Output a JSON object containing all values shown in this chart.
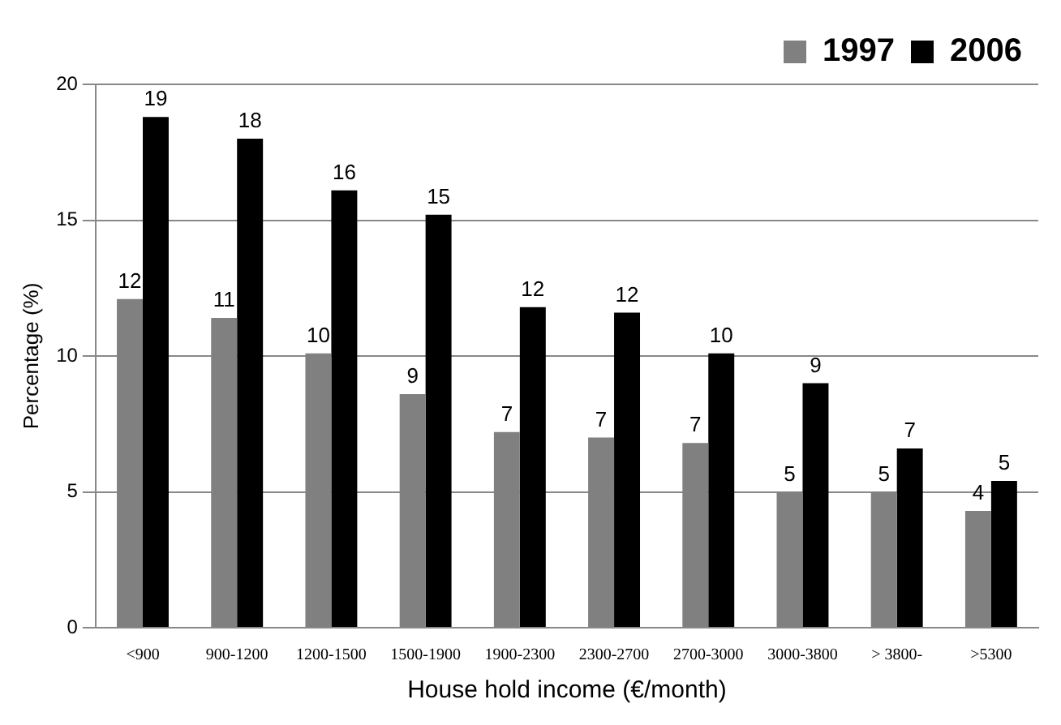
{
  "chart_data": {
    "type": "bar",
    "xlabel": "House hold income (€/month)",
    "ylabel": "Percentage (%)",
    "categories": [
      "<900",
      "900-1200",
      "1200-1500",
      "1500-1900",
      "1900-2300",
      "2300-2700",
      "2700-3000",
      "3000-3800",
      "> 3800-",
      ">5300"
    ],
    "series": [
      {
        "name": "1997",
        "color": "#808080",
        "values": [
          12.1,
          11.4,
          10.1,
          8.6,
          7.2,
          7.0,
          6.8,
          5.0,
          5.0,
          4.3
        ],
        "value_labels": [
          "12",
          "11",
          "10",
          "9",
          "7",
          "7",
          "7",
          "5",
          "5",
          "4"
        ]
      },
      {
        "name": "2006",
        "color": "#000000",
        "values": [
          18.8,
          18.0,
          16.1,
          15.2,
          11.8,
          11.6,
          10.1,
          9.0,
          6.6,
          5.4
        ],
        "value_labels": [
          "19",
          "18",
          "16",
          "15",
          "12",
          "12",
          "10",
          "9",
          "7",
          "5"
        ]
      }
    ],
    "ylim": [
      0,
      20
    ],
    "yticks": [
      0,
      5,
      10,
      15,
      20
    ],
    "grid": "y",
    "legend": "top right"
  }
}
